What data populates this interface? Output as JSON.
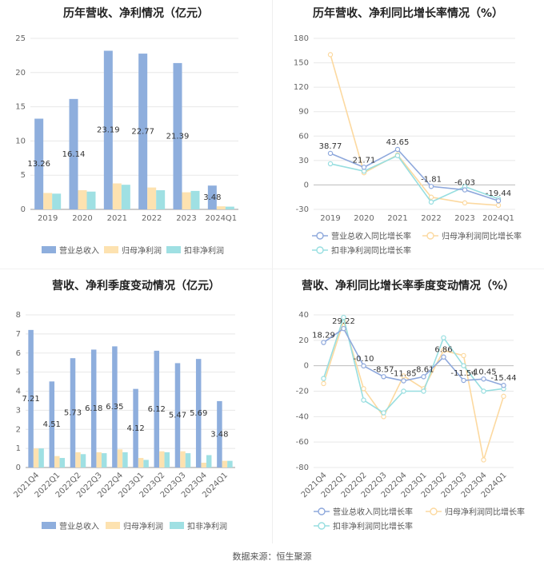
{
  "source": "数据来源：恒生聚源",
  "colors": {
    "revenue": "#8eaedd",
    "net": "#fde2b0",
    "deducted": "#9fe0e3",
    "revenue_line": "#8ea8dc",
    "net_line": "#fcd9a0",
    "deducted_line": "#97dee0",
    "grid": "#e8e8e8",
    "axis": "#888888"
  },
  "chart_data": [
    {
      "type": "bar",
      "title": "历年营收、净利情况（亿元）",
      "categories": [
        "2019",
        "2020",
        "2021",
        "2022",
        "2023",
        "2024Q1"
      ],
      "ylim": [
        0,
        25
      ],
      "yticks": [
        0,
        5,
        10,
        15,
        20,
        25
      ],
      "series": [
        {
          "name": "营业总收入",
          "values": [
            13.26,
            16.14,
            23.19,
            22.77,
            21.39,
            3.48
          ],
          "labels": [
            "13.26",
            "16.14",
            "23.19",
            "22.77",
            "21.39",
            "3.48"
          ]
        },
        {
          "name": "归母净利润",
          "values": [
            2.4,
            2.8,
            3.8,
            3.2,
            2.5,
            0.45
          ]
        },
        {
          "name": "扣非净利润",
          "values": [
            2.3,
            2.6,
            3.6,
            2.8,
            2.7,
            0.4
          ]
        }
      ],
      "legend": "bottom",
      "grid": true
    },
    {
      "type": "line",
      "title": "历年营收、净利同比增长率情况（%）",
      "categories": [
        "2019",
        "2020",
        "2021",
        "2022",
        "2023",
        "2024Q1"
      ],
      "ylim": [
        -30,
        180
      ],
      "yticks": [
        -30,
        0,
        30,
        60,
        90,
        120,
        150,
        180
      ],
      "series": [
        {
          "name": "营业总收入同比增长率",
          "values": [
            38.77,
            21.71,
            43.65,
            -1.81,
            -6.03,
            -19.44
          ],
          "labels": [
            "38.77",
            "21.71",
            "43.65",
            "-1.81",
            "-6.03",
            "-19.44"
          ]
        },
        {
          "name": "归母净利润同比增长率",
          "values": [
            160,
            15,
            37,
            -15,
            -22,
            -25
          ]
        },
        {
          "name": "扣非净利润同比增长率",
          "values": [
            26,
            17,
            36,
            -21,
            -2,
            -17
          ]
        }
      ],
      "legend": "bottom",
      "grid": true
    },
    {
      "type": "bar",
      "title": "营收、净利季度变动情况（亿元）",
      "categories": [
        "2021Q4",
        "2022Q1",
        "2022Q2",
        "2022Q3",
        "2022Q4",
        "2023Q1",
        "2023Q2",
        "2023Q3",
        "2023Q4",
        "2024Q1"
      ],
      "ylim": [
        0,
        8
      ],
      "yticks": [
        0,
        1,
        2,
        3,
        4,
        5,
        6,
        7,
        8
      ],
      "series": [
        {
          "name": "营业总收入",
          "values": [
            7.21,
            4.51,
            5.73,
            6.18,
            6.35,
            4.12,
            6.12,
            5.47,
            5.69,
            3.48
          ],
          "labels": [
            "7.21",
            "4.51",
            "5.73",
            "6.18",
            "6.35",
            "4.12",
            "6.12",
            "5.47",
            "5.69",
            "3.48"
          ]
        },
        {
          "name": "归母净利润",
          "values": [
            1.0,
            0.6,
            0.8,
            0.8,
            0.95,
            0.5,
            0.85,
            0.85,
            0.25,
            0.35
          ]
        },
        {
          "name": "扣非净利润",
          "values": [
            1.0,
            0.5,
            0.7,
            0.75,
            0.8,
            0.4,
            0.8,
            0.75,
            0.65,
            0.35
          ]
        }
      ],
      "legend": "bottom",
      "grid": true
    },
    {
      "type": "line",
      "title": "营收、净利同比增长率季度变动情况（%）",
      "categories": [
        "2021Q4",
        "2022Q1",
        "2022Q2",
        "2022Q3",
        "2022Q4",
        "2023Q1",
        "2023Q2",
        "2023Q3",
        "2023Q4",
        "2024Q1"
      ],
      "ylim": [
        -80,
        40
      ],
      "yticks": [
        -80,
        -60,
        -40,
        -20,
        0,
        20,
        40
      ],
      "series": [
        {
          "name": "营业总收入同比增长率",
          "values": [
            18.29,
            29.22,
            -0.1,
            -8.57,
            -11.85,
            -8.61,
            6.86,
            -11.54,
            -10.45,
            -15.44
          ],
          "labels": [
            "18.29",
            "29.22",
            "-0.10",
            "-8.57",
            "-11.85",
            "-8.61",
            "6.86",
            "-11.54",
            "-10.45",
            "-15.44"
          ]
        },
        {
          "name": "归母净利润同比增长率",
          "values": [
            -14,
            35,
            -18,
            -40,
            -8,
            -18,
            12,
            8,
            -74,
            -24
          ]
        },
        {
          "name": "扣非净利润同比增长率",
          "values": [
            -10,
            38,
            -27,
            -37,
            -20,
            -20,
            22,
            0,
            -20,
            -18
          ]
        }
      ],
      "legend": "bottom",
      "grid": true
    }
  ]
}
